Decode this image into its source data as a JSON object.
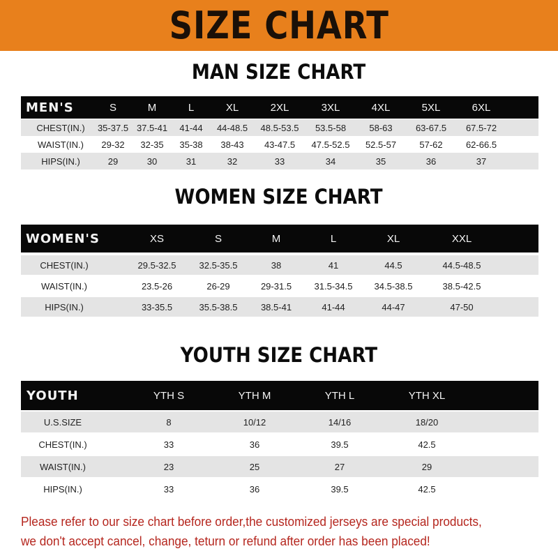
{
  "banner_title": "SIZE CHART",
  "men": {
    "title": "MAN SIZE CHART",
    "header": [
      "MEN'S",
      "S",
      "M",
      "L",
      "XL",
      "2XL",
      "3XL",
      "4XL",
      "5XL",
      "6XL"
    ],
    "rows": [
      [
        "CHEST(IN.)",
        "35-37.5",
        "37.5-41",
        "41-44",
        "44-48.5",
        "48.5-53.5",
        "53.5-58",
        "58-63",
        "63-67.5",
        "67.5-72"
      ],
      [
        "WAIST(IN.)",
        "29-32",
        "32-35",
        "35-38",
        "38-43",
        "43-47.5",
        "47.5-52.5",
        "52.5-57",
        "57-62",
        "62-66.5"
      ],
      [
        "HIPS(IN.)",
        "29",
        "30",
        "31",
        "32",
        "33",
        "34",
        "35",
        "36",
        "37"
      ]
    ]
  },
  "women": {
    "title": "WOMEN SIZE CHART",
    "header": [
      "WOMEN'S",
      "XS",
      "S",
      "M",
      "L",
      "XL",
      "XXL"
    ],
    "rows": [
      [
        "CHEST(IN.)",
        "29.5-32.5",
        "32.5-35.5",
        "38",
        "41",
        "44.5",
        "44.5-48.5"
      ],
      [
        "WAIST(IN.)",
        "23.5-26",
        "26-29",
        "29-31.5",
        "31.5-34.5",
        "34.5-38.5",
        "38.5-42.5"
      ],
      [
        "HIPS(IN.)",
        "33-35.5",
        "35.5-38.5",
        "38.5-41",
        "41-44",
        "44-47",
        "47-50"
      ]
    ]
  },
  "youth": {
    "title": "YOUTH SIZE CHART",
    "header": [
      "YOUTH",
      "YTH S",
      "YTH M",
      "YTH L",
      "YTH XL"
    ],
    "rows": [
      [
        "U.S.SIZE",
        "8",
        "10/12",
        "14/16",
        "18/20"
      ],
      [
        "CHEST(IN.)",
        "33",
        "36",
        "39.5",
        "42.5"
      ],
      [
        "WAIST(IN.)",
        "23",
        "25",
        "27",
        "29"
      ],
      [
        "HIPS(IN.)",
        "33",
        "36",
        "39.5",
        "42.5"
      ]
    ]
  },
  "notice": {
    "line1": "Please refer to our size chart before order,the customized jerseys are special products,",
    "line2": "we don't accept cancel, change, teturn or refund after order has been placed!"
  },
  "colors": {
    "banner": "#e8801c",
    "header_row": "#080808",
    "notice_text": "#b5261e"
  }
}
